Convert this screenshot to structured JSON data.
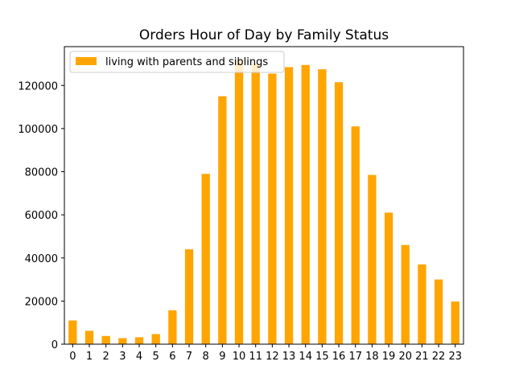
{
  "chart_data": {
    "type": "bar",
    "title": "Orders Hour of Day by Family Status",
    "xlabel": "",
    "ylabel": "",
    "categories": [
      "0",
      "1",
      "2",
      "3",
      "4",
      "5",
      "6",
      "7",
      "8",
      "9",
      "10",
      "11",
      "12",
      "13",
      "14",
      "15",
      "16",
      "17",
      "18",
      "19",
      "20",
      "21",
      "22",
      "23"
    ],
    "series": [
      {
        "name": "living with parents and siblings",
        "color": "#ffa500",
        "values": [
          11000,
          6200,
          3800,
          2800,
          3200,
          4700,
          15700,
          44000,
          79000,
          115000,
          132000,
          130000,
          125500,
          128500,
          129500,
          127500,
          121500,
          101000,
          78500,
          61000,
          46000,
          37000,
          30000,
          19800
        ]
      }
    ],
    "ylim": [
      0,
      138000
    ],
    "yticks": [
      0,
      20000,
      40000,
      60000,
      80000,
      100000,
      120000
    ],
    "ytick_labels": [
      "0",
      "20000",
      "40000",
      "60000",
      "80000",
      "100000",
      "120000"
    ],
    "legend_position": "upper-left",
    "grid": false
  }
}
